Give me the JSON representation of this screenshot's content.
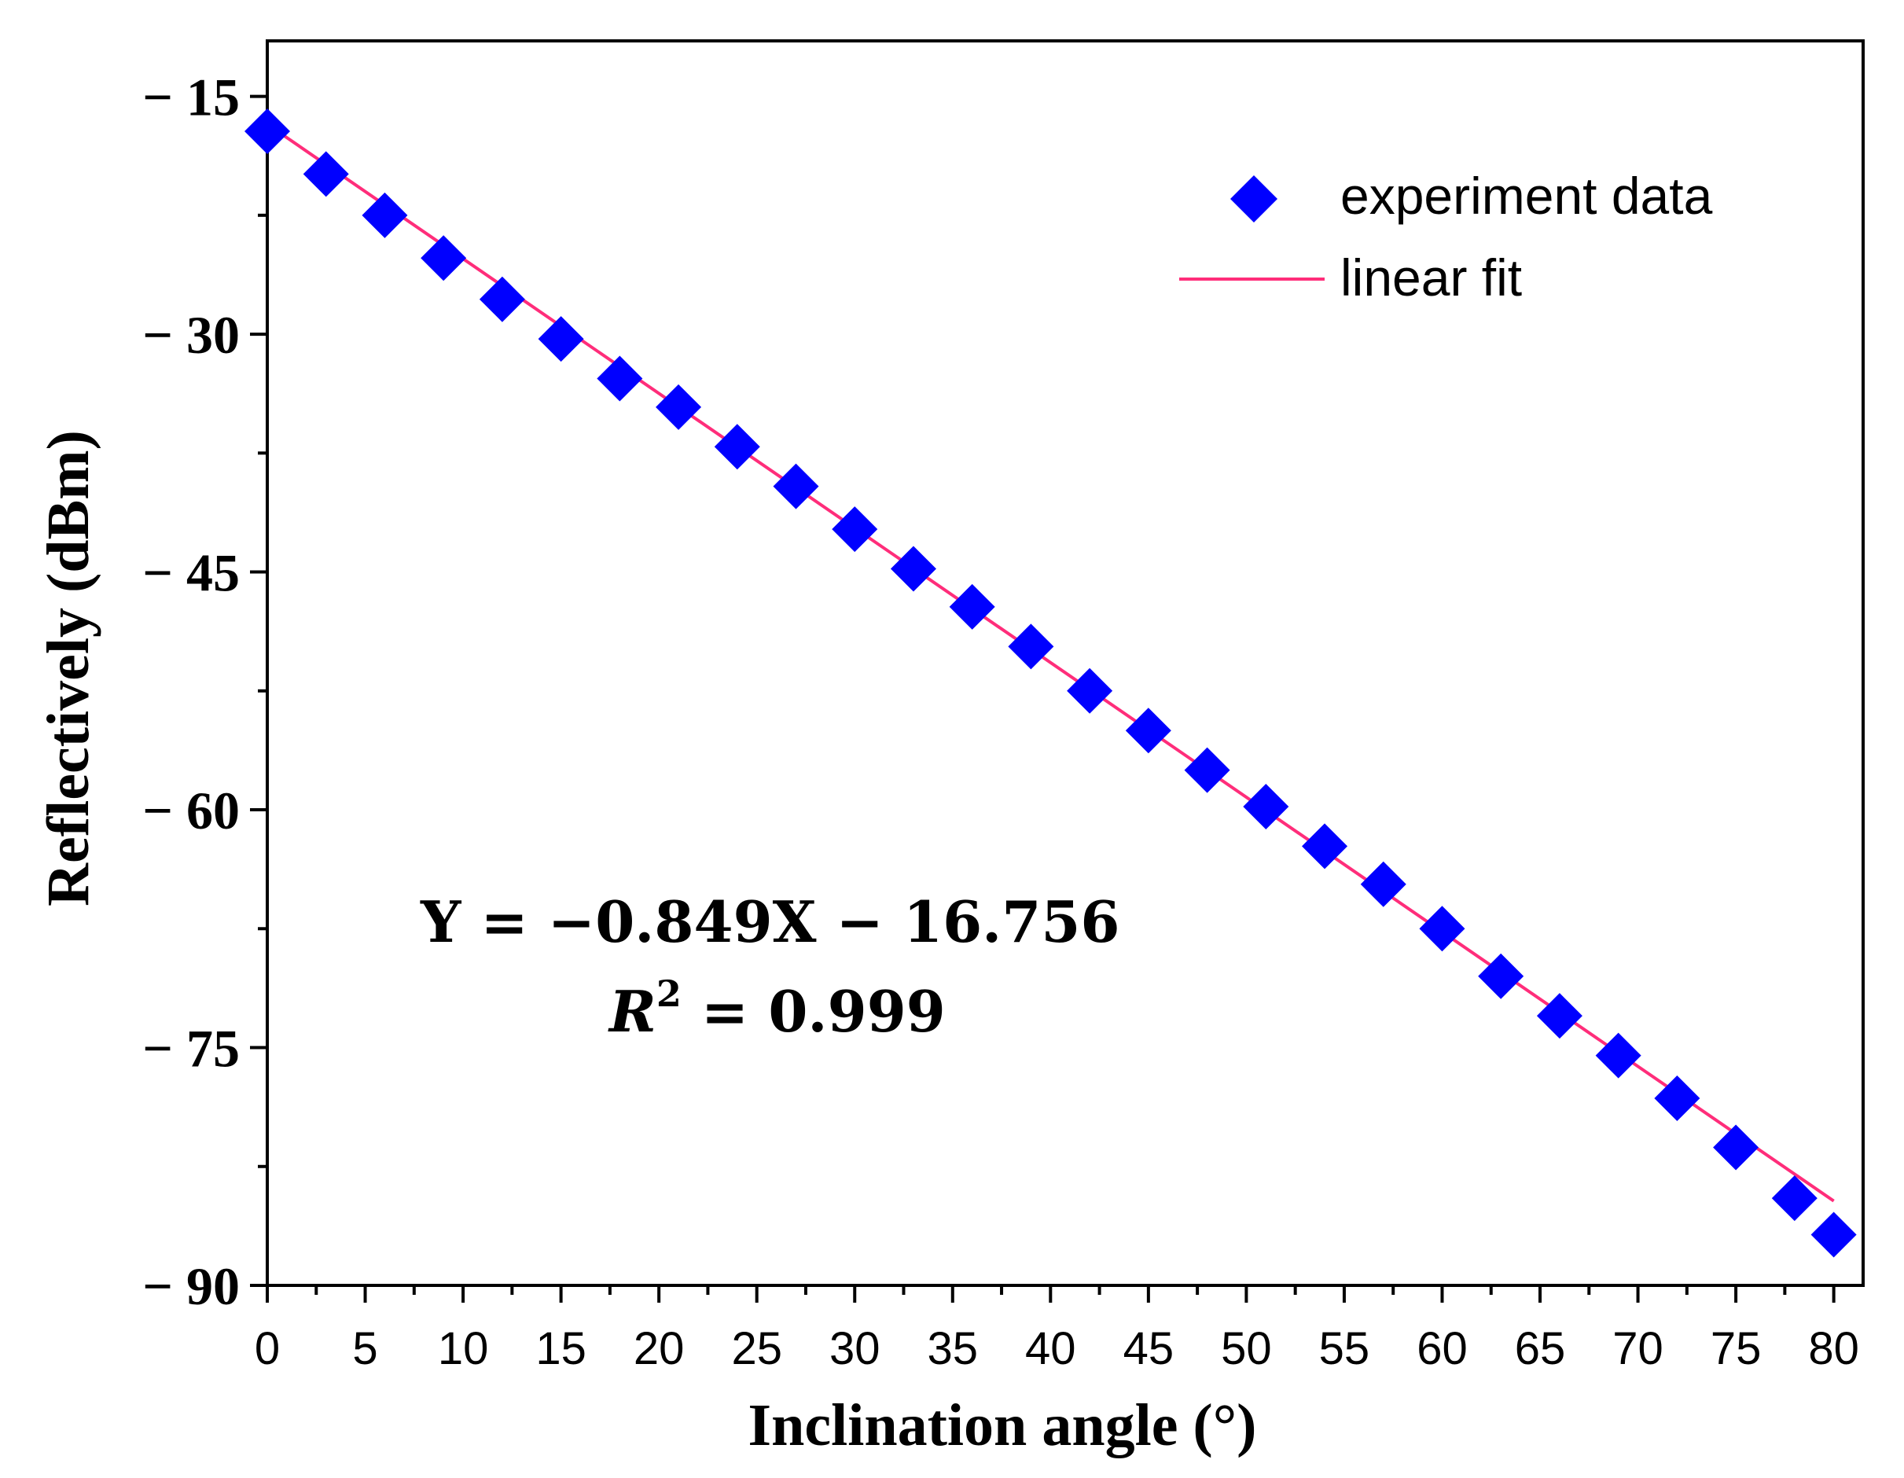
{
  "chart_data": {
    "type": "scatter",
    "title": "",
    "xlabel": "Inclination angle (°)",
    "ylabel": "Reflectively (dBm)",
    "xlim": [
      0,
      81.5
    ],
    "ylim": [
      -90,
      -11.5
    ],
    "x_ticks": [
      0,
      5,
      10,
      15,
      20,
      25,
      30,
      35,
      40,
      45,
      50,
      55,
      60,
      65,
      70,
      75,
      80
    ],
    "x_tick_labels": [
      "0",
      "5",
      "10",
      "15",
      "20",
      "25",
      "30",
      "35",
      "40",
      "45",
      "50",
      "55",
      "60",
      "65",
      "70",
      "75",
      "80"
    ],
    "y_ticks": [
      -15,
      -30,
      -45,
      -60,
      -75,
      -90
    ],
    "y_tick_labels": [
      "− 15",
      "− 30",
      "− 45",
      "− 60",
      "− 75",
      "− 90"
    ],
    "series": [
      {
        "name": "experiment data",
        "kind": "scatter",
        "marker": "diamond",
        "color": "#0000ff",
        "x": [
          0,
          3,
          6,
          9,
          12,
          15,
          18,
          21,
          24,
          27,
          30,
          33,
          36,
          39,
          42,
          45,
          48,
          51,
          54,
          57,
          60,
          63,
          66,
          69,
          72,
          75,
          78,
          80
        ],
        "y": [
          -17.2,
          -19.9,
          -22.5,
          -25.2,
          -27.8,
          -30.3,
          -32.8,
          -34.6,
          -37.1,
          -39.6,
          -42.3,
          -44.8,
          -47.2,
          -49.7,
          -52.5,
          -55.0,
          -57.5,
          -59.8,
          -62.3,
          -64.7,
          -67.5,
          -70.5,
          -73.0,
          -75.5,
          -78.2,
          -81.3,
          -84.5,
          -86.8
        ]
      },
      {
        "name": "linear fit",
        "kind": "line",
        "color": "#ff2d7a",
        "slope": -0.849,
        "intercept": -16.756,
        "x": [
          0,
          80
        ]
      }
    ],
    "legend_position": "top-right",
    "annotations": {
      "equation": "Y = −0.849X − 16.756",
      "r2_label": "R",
      "r2_exponent": "2",
      "r2_value": " = 0.999"
    }
  }
}
